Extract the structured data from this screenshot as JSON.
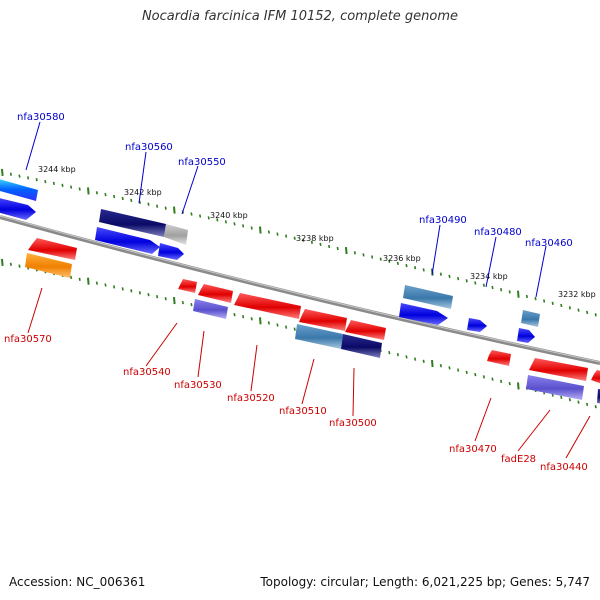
{
  "title": "Nocardia farcinica IFM 10152, complete genome",
  "footer": {
    "accession": "Accession: NC_006361",
    "summary": "Topology: circular; Length: 6,021,225 bp; Genes: 5,747"
  },
  "colors": {
    "backbone": "#8a8a8a",
    "tick": "#2e7d1e",
    "forward_label": "#0000cc",
    "reverse_label": "#cc0000"
  },
  "scale_ticks": [
    "3244 kbp",
    "3242 kbp",
    "3240 kbp",
    "3238 kbp",
    "3236 kbp",
    "3234 kbp",
    "3232 kbp"
  ],
  "forward_labels": [
    "nfa30580",
    "nfa30560",
    "nfa30550",
    "nfa30490",
    "nfa30480",
    "nfa30460"
  ],
  "reverse_labels": [
    "nfa30570",
    "nfa30540",
    "nfa30530",
    "nfa30520",
    "nfa30510",
    "nfa30500",
    "nfa30470",
    "fadE28",
    "nfa30440"
  ]
}
